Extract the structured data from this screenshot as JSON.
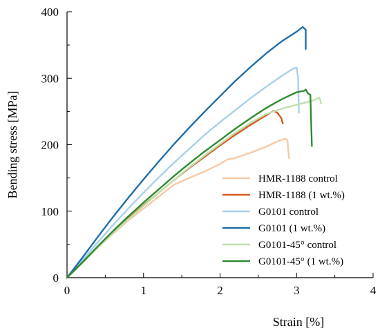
{
  "chart_data": {
    "type": "line",
    "title": "",
    "xlabel": "Strain [%]",
    "ylabel": "Bending stress [MPa]",
    "xlim": [
      0,
      4
    ],
    "ylim": [
      0,
      400
    ],
    "x_ticks": [
      "0",
      "1",
      "2",
      "3",
      "4"
    ],
    "y_ticks": [
      "0",
      "100",
      "200",
      "300",
      "400"
    ],
    "grid": false,
    "legend_position": "bottom-right",
    "series": [
      {
        "name": "HMR-1188 control",
        "color": "#F7C9A5",
        "points": [
          [
            0,
            0
          ],
          [
            0.2,
            22
          ],
          [
            0.4,
            45
          ],
          [
            0.6,
            66
          ],
          [
            0.8,
            86
          ],
          [
            1.0,
            104
          ],
          [
            1.2,
            122
          ],
          [
            1.4,
            140
          ],
          [
            1.6,
            150
          ],
          [
            1.8,
            160
          ],
          [
            2.0,
            171
          ],
          [
            2.1,
            178
          ],
          [
            2.2,
            180
          ],
          [
            2.4,
            188
          ],
          [
            2.6,
            197
          ],
          [
            2.75,
            205
          ],
          [
            2.85,
            209
          ],
          [
            2.88,
            207
          ],
          [
            2.9,
            180
          ]
        ]
      },
      {
        "name": "HMR-1188 (1 wt.%)",
        "color": "#D9581F",
        "points": [
          [
            0,
            0
          ],
          [
            0.2,
            23
          ],
          [
            0.4,
            46
          ],
          [
            0.6,
            68
          ],
          [
            0.8,
            89
          ],
          [
            1.0,
            109
          ],
          [
            1.2,
            128
          ],
          [
            1.4,
            147
          ],
          [
            1.6,
            165
          ],
          [
            1.8,
            182
          ],
          [
            2.0,
            199
          ],
          [
            2.2,
            215
          ],
          [
            2.4,
            230
          ],
          [
            2.6,
            244
          ],
          [
            2.7,
            251
          ],
          [
            2.75,
            248
          ],
          [
            2.8,
            240
          ],
          [
            2.82,
            232
          ]
        ]
      },
      {
        "name": "G0101 control",
        "color": "#A8D0EA",
        "points": [
          [
            0,
            0
          ],
          [
            0.2,
            26
          ],
          [
            0.4,
            53
          ],
          [
            0.6,
            79
          ],
          [
            0.8,
            104
          ],
          [
            1.0,
            128
          ],
          [
            1.2,
            151
          ],
          [
            1.4,
            173
          ],
          [
            1.6,
            194
          ],
          [
            1.8,
            215
          ],
          [
            2.0,
            234
          ],
          [
            2.2,
            252
          ],
          [
            2.4,
            270
          ],
          [
            2.6,
            287
          ],
          [
            2.8,
            303
          ],
          [
            2.95,
            314
          ],
          [
            3.0,
            316
          ],
          [
            3.02,
            300
          ],
          [
            3.03,
            248
          ]
        ]
      },
      {
        "name": "G0101 (1 wt.%)",
        "color": "#1F6EA8",
        "points": [
          [
            0,
            0
          ],
          [
            0.2,
            30
          ],
          [
            0.4,
            61
          ],
          [
            0.6,
            91
          ],
          [
            0.8,
            120
          ],
          [
            1.0,
            148
          ],
          [
            1.2,
            175
          ],
          [
            1.4,
            201
          ],
          [
            1.6,
            226
          ],
          [
            1.8,
            250
          ],
          [
            2.0,
            273
          ],
          [
            2.2,
            296
          ],
          [
            2.4,
            317
          ],
          [
            2.6,
            337
          ],
          [
            2.8,
            355
          ],
          [
            3.0,
            370
          ],
          [
            3.08,
            377
          ],
          [
            3.12,
            373
          ],
          [
            3.12,
            344
          ]
        ]
      },
      {
        "name": "G0101-45° control",
        "color": "#BEE0AE",
        "points": [
          [
            0,
            0
          ],
          [
            0.2,
            22
          ],
          [
            0.4,
            45
          ],
          [
            0.6,
            67
          ],
          [
            0.8,
            88
          ],
          [
            1.0,
            108
          ],
          [
            1.2,
            128
          ],
          [
            1.4,
            147
          ],
          [
            1.6,
            166
          ],
          [
            1.8,
            184
          ],
          [
            2.0,
            201
          ],
          [
            2.2,
            218
          ],
          [
            2.4,
            233
          ],
          [
            2.6,
            246
          ],
          [
            2.8,
            254
          ],
          [
            3.0,
            260
          ],
          [
            3.2,
            266
          ],
          [
            3.3,
            271
          ],
          [
            3.32,
            262
          ]
        ]
      },
      {
        "name": "G0101-45° (1 wt.%)",
        "color": "#2F8A2F",
        "points": [
          [
            0,
            0
          ],
          [
            0.2,
            23
          ],
          [
            0.4,
            47
          ],
          [
            0.6,
            70
          ],
          [
            0.8,
            92
          ],
          [
            1.0,
            113
          ],
          [
            1.2,
            133
          ],
          [
            1.4,
            153
          ],
          [
            1.6,
            172
          ],
          [
            1.8,
            190
          ],
          [
            2.0,
            207
          ],
          [
            2.2,
            224
          ],
          [
            2.4,
            240
          ],
          [
            2.6,
            255
          ],
          [
            2.8,
            268
          ],
          [
            3.0,
            279
          ],
          [
            3.1,
            281
          ],
          [
            3.12,
            283
          ],
          [
            3.15,
            277
          ],
          [
            3.18,
            275
          ],
          [
            3.2,
            198
          ]
        ]
      }
    ]
  }
}
